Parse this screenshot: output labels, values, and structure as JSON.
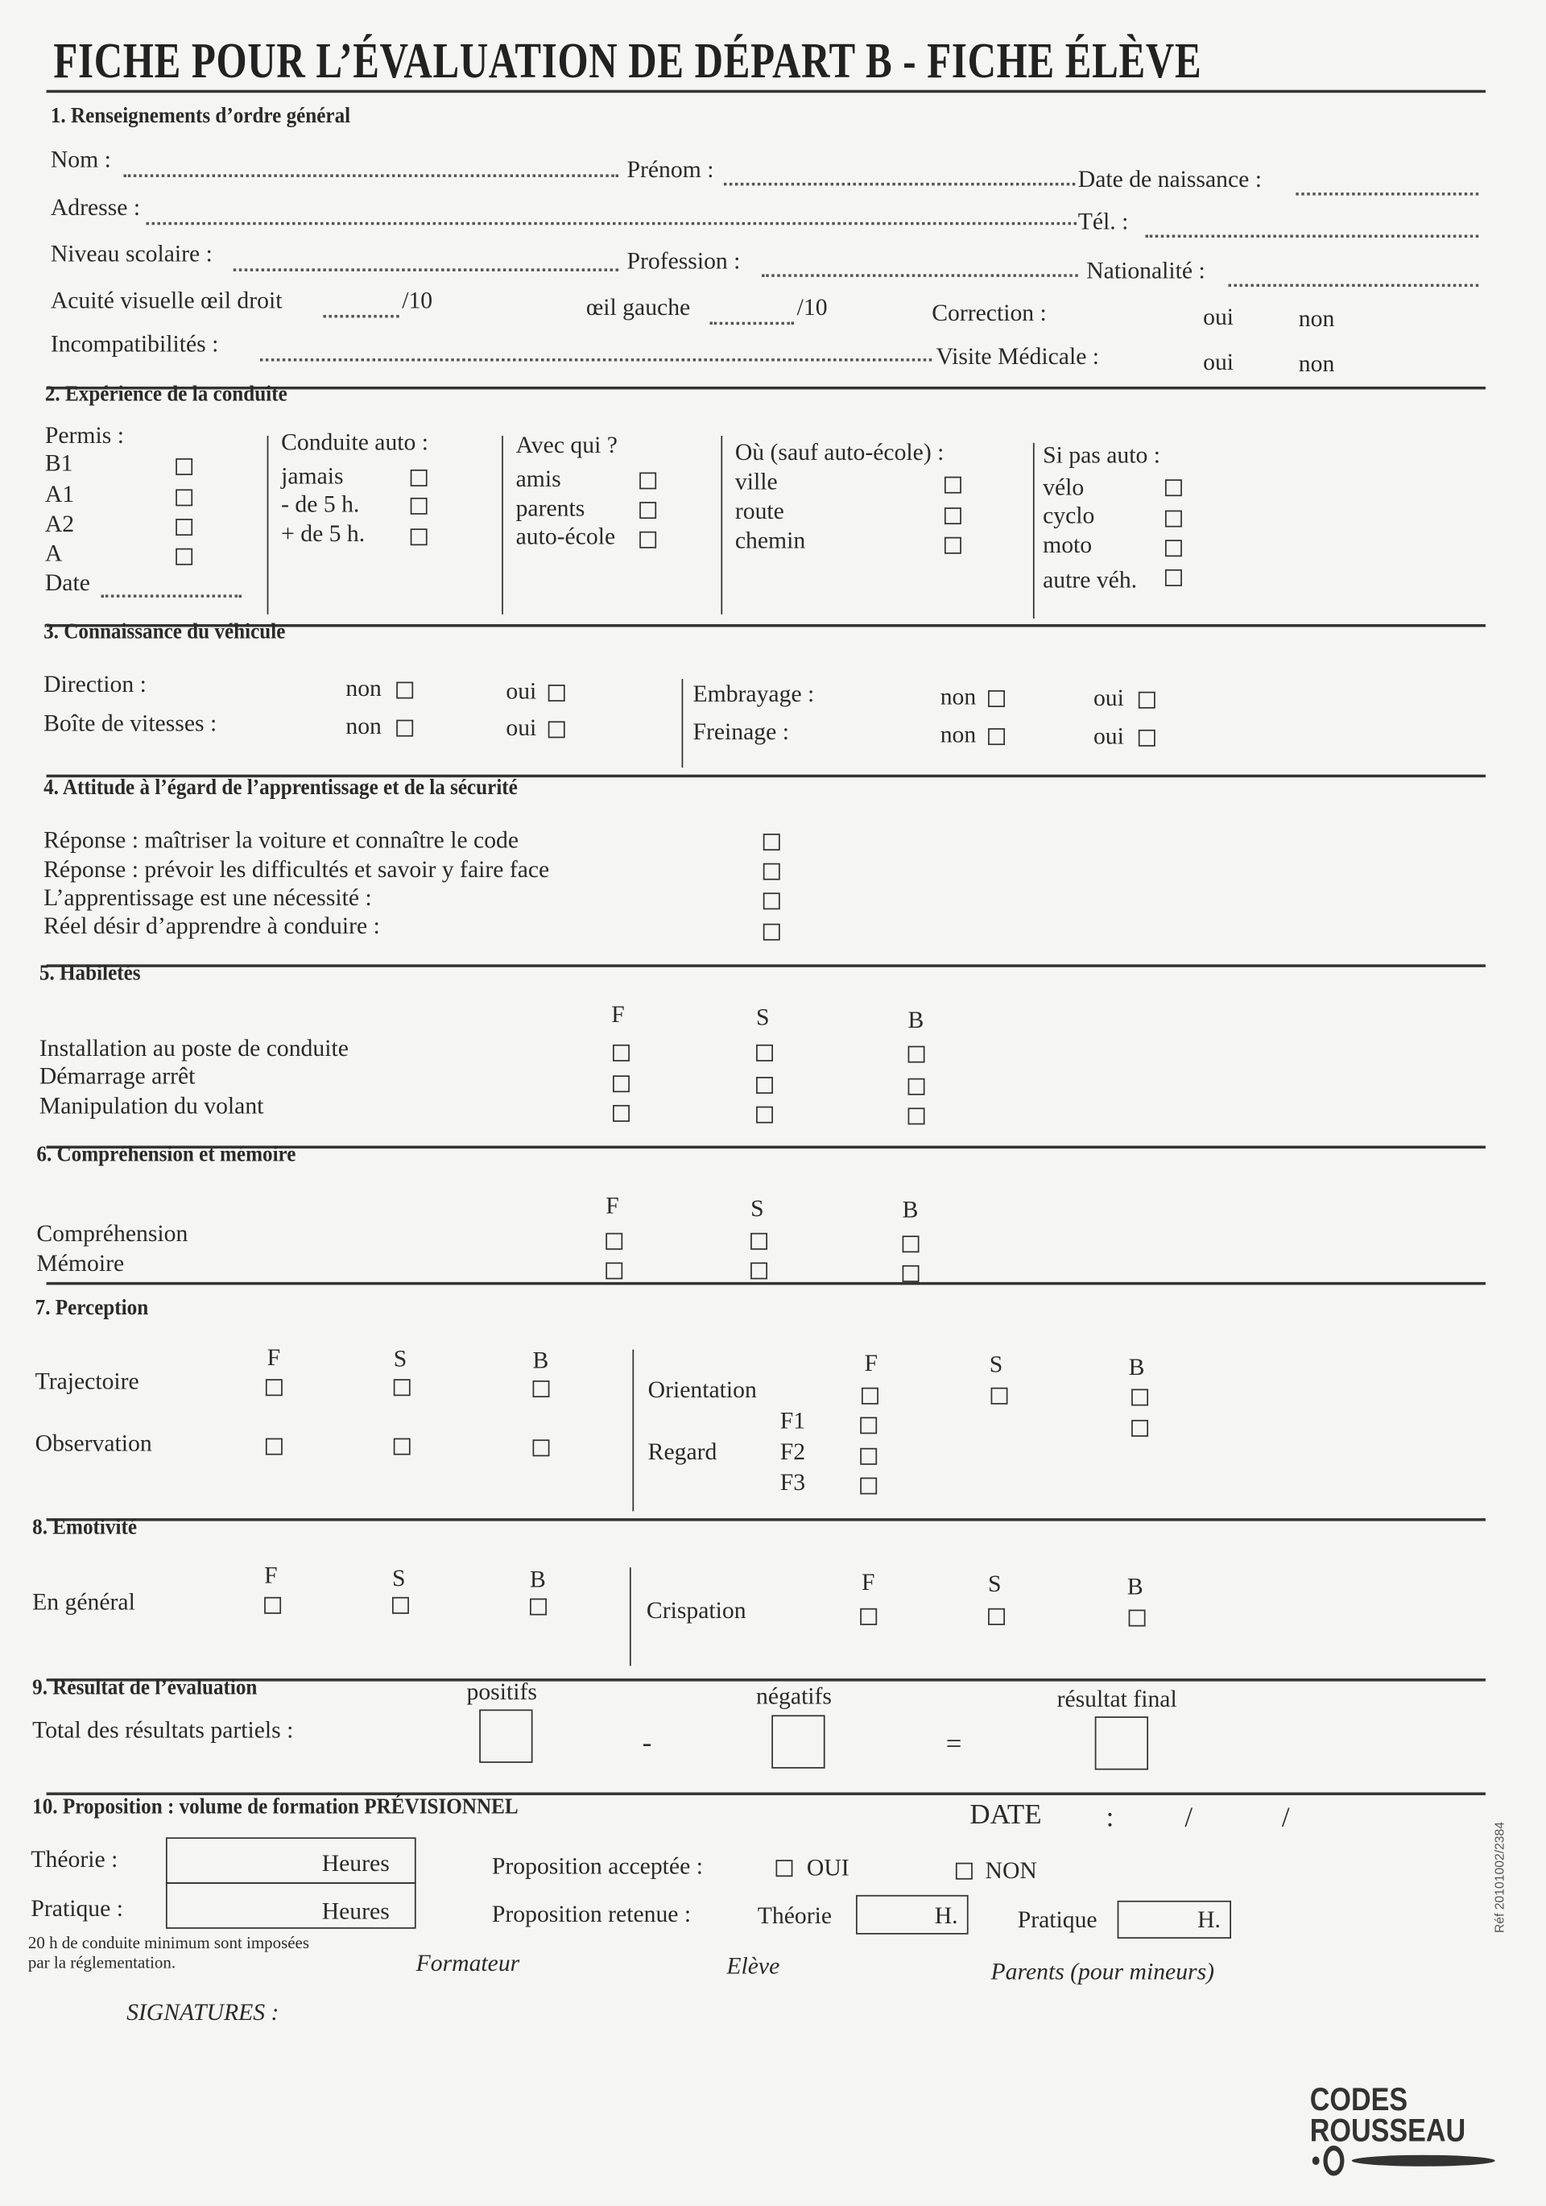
{
  "title": "FICHE POUR L’ÉVALUATION DE DÉPART B - FICHE ÉLÈVE",
  "s1": {
    "heading": "1. Renseignements d’ordre général",
    "nom": "Nom :",
    "prenom": "Prénom :",
    "date_naissance": "Date de naissance :",
    "adresse": "Adresse :",
    "tel": "Tél. :",
    "niveau": "Niveau scolaire :",
    "profession": "Profession :",
    "nationalite": "Nationalité :",
    "acuite": "Acuité visuelle œil droit",
    "sur10": "/10",
    "oeil_gauche": "œil gauche",
    "correction": "Correction :",
    "oui": "oui",
    "non": "non",
    "incompat": "Incompatibilités :",
    "visite": "Visite Médicale :"
  },
  "s2": {
    "heading": "2. Expérience de la conduite",
    "permis": {
      "label": "Permis :",
      "items": [
        "B1",
        "A1",
        "A2",
        "A"
      ],
      "date": "Date"
    },
    "conduite": {
      "label": "Conduite auto :",
      "items": [
        "jamais",
        "- de 5 h.",
        "+ de 5 h."
      ]
    },
    "avec": {
      "label": "Avec qui ?",
      "items": [
        "amis",
        "parents",
        "auto-école"
      ]
    },
    "ou": {
      "label": "Où (sauf auto-école) :",
      "items": [
        "ville",
        "route",
        "chemin"
      ]
    },
    "sipas": {
      "label": "Si pas auto :",
      "items": [
        "vélo",
        "cyclo",
        "moto",
        "autre véh."
      ]
    }
  },
  "s3": {
    "heading": "3. Connaissance du véhicule",
    "direction": "Direction :",
    "boite": "Boîte de vitesses :",
    "embrayage": "Embrayage :",
    "freinage": "Freinage :",
    "non": "non",
    "oui": "oui"
  },
  "s4": {
    "heading": "4. Attitude à l’égard de l’apprentissage et de la sécurité",
    "items": [
      "Réponse : maîtriser la voiture et connaître le code",
      "Réponse : prévoir les difficultés et savoir y faire face",
      "L’apprentissage est une nécessité  :",
      "Réel désir d’apprendre à conduire :"
    ]
  },
  "scale": {
    "f": "F",
    "s": "S",
    "b": "B"
  },
  "s5": {
    "heading": "5. Habiletés",
    "items": [
      "Installation au poste de conduite",
      "Démarrage arrêt",
      "Manipulation du volant"
    ]
  },
  "s6": {
    "heading": "6. Compréhension et mémoire",
    "items": [
      "Compréhension",
      "Mémoire"
    ]
  },
  "s7": {
    "heading": "7. Perception",
    "trajectoire": "Trajectoire",
    "observation": "Observation",
    "orientation": "Orientation",
    "regard": "Regard",
    "f1": "F1",
    "f2": "F2",
    "f3": "F3"
  },
  "s8": {
    "heading": "8. Emotivité",
    "general": "En général",
    "crispation": "Crispation"
  },
  "s9": {
    "heading": "9. Résultat de l’évaluation",
    "total": "Total des résultats partiels :",
    "positifs": "positifs",
    "negatifs": "négatifs",
    "final": "résultat final",
    "minus": "-",
    "equals": "="
  },
  "s10": {
    "heading": "10. Proposition : volume de formation PRÉVISIONNEL",
    "date": "DATE",
    "colon": ":",
    "slash": "/",
    "theorie": "Théorie :",
    "pratique": "Pratique :",
    "heures": "Heures",
    "acceptee": "Proposition acceptée :",
    "oui": "OUI",
    "non": "NON",
    "retenue": "Proposition retenue :",
    "theorie2": "Théorie",
    "pratique2": "Pratique",
    "h": "H.",
    "note1": "20 h de conduite minimum sont imposées",
    "note2": "par la réglementation.",
    "formateur": "Formateur",
    "eleve": "Elève",
    "parents": "Parents (pour mineurs)",
    "signatures": "SIGNATURES :"
  },
  "ref": "Réf 20101002/2384",
  "logo": {
    "line1": "CODES",
    "line2": "ROUSSEAU"
  }
}
